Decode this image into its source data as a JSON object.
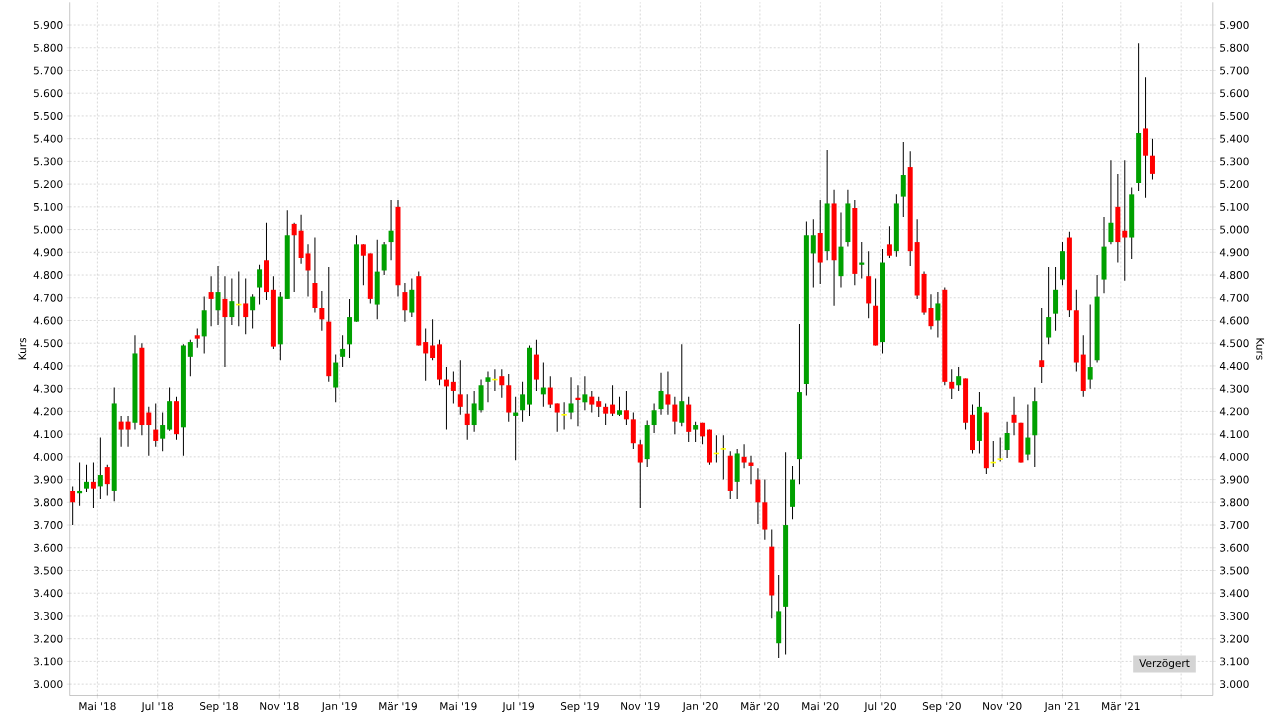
{
  "chart_data": {
    "type": "candlestick",
    "ylabel": "Kurs",
    "y2label": "Kurs",
    "annotations": [
      "Verzögert"
    ],
    "grid": true,
    "xlim": [
      "2018-04-03",
      "2021-06-02"
    ],
    "xticks": [
      {
        "value": "2018-05-01",
        "label": "Mai '18"
      },
      {
        "value": "2018-07-01",
        "label": "Jul '18"
      },
      {
        "value": "2018-09-01",
        "label": "Sep '18"
      },
      {
        "value": "2018-11-01",
        "label": "Nov '18"
      },
      {
        "value": "2019-01-01",
        "label": "Jan '19"
      },
      {
        "value": "2019-03-01",
        "label": "Mär '19"
      },
      {
        "value": "2019-05-01",
        "label": "Mai '19"
      },
      {
        "value": "2019-07-01",
        "label": "Jul '19"
      },
      {
        "value": "2019-09-01",
        "label": "Sep '19"
      },
      {
        "value": "2019-11-01",
        "label": "Nov '19"
      },
      {
        "value": "2020-01-01",
        "label": "Jan '20"
      },
      {
        "value": "2020-03-01",
        "label": "Mär '20"
      },
      {
        "value": "2020-05-01",
        "label": "Mai '20"
      },
      {
        "value": "2020-07-01",
        "label": "Jul '20"
      },
      {
        "value": "2020-09-01",
        "label": "Sep '20"
      },
      {
        "value": "2020-11-01",
        "label": "Nov '20"
      },
      {
        "value": "2021-01-01",
        "label": "Jan '21"
      },
      {
        "value": "2021-03-01",
        "label": "Mär '21"
      },
      {
        "value": "2021-05-01",
        "label": null
      }
    ],
    "ylim": [
      2950,
      6000
    ],
    "yticks": [
      {
        "value": 3000,
        "label": "3.000"
      },
      {
        "value": 3100,
        "label": "3.100"
      },
      {
        "value": 3200,
        "label": "3.200"
      },
      {
        "value": 3300,
        "label": "3.300"
      },
      {
        "value": 3400,
        "label": "3.400"
      },
      {
        "value": 3500,
        "label": "3.500"
      },
      {
        "value": 3600,
        "label": "3.600"
      },
      {
        "value": 3700,
        "label": "3.700"
      },
      {
        "value": 3800,
        "label": "3.800"
      },
      {
        "value": 3900,
        "label": "3.900"
      },
      {
        "value": 4000,
        "label": "4.000"
      },
      {
        "value": 4100,
        "label": "4.100"
      },
      {
        "value": 4200,
        "label": "4.200"
      },
      {
        "value": 4300,
        "label": "4.300"
      },
      {
        "value": 4400,
        "label": "4.400"
      },
      {
        "value": 4500,
        "label": "4.500"
      },
      {
        "value": 4600,
        "label": "4.600"
      },
      {
        "value": 4700,
        "label": "4.700"
      },
      {
        "value": 4800,
        "label": "4.800"
      },
      {
        "value": 4900,
        "label": "4.900"
      },
      {
        "value": 5000,
        "label": "5.000"
      },
      {
        "value": 5100,
        "label": "5.100"
      },
      {
        "value": 5200,
        "label": "5.200"
      },
      {
        "value": 5300,
        "label": "5.300"
      },
      {
        "value": 5400,
        "label": "5.400"
      },
      {
        "value": 5500,
        "label": "5.500"
      },
      {
        "value": 5600,
        "label": "5.600"
      },
      {
        "value": 5700,
        "label": "5.700"
      },
      {
        "value": 5800,
        "label": "5.800"
      },
      {
        "value": 5900,
        "label": "5.900"
      }
    ],
    "y2lim": [
      2950,
      6000
    ],
    "y2ticks": [
      {
        "value": 3000,
        "label": "3.000"
      },
      {
        "value": 3100,
        "label": "3.100"
      },
      {
        "value": 3200,
        "label": "3.200"
      },
      {
        "value": 3300,
        "label": "3.300"
      },
      {
        "value": 3400,
        "label": "3.400"
      },
      {
        "value": 3500,
        "label": "3.500"
      },
      {
        "value": 3600,
        "label": "3.600"
      },
      {
        "value": 3700,
        "label": "3.700"
      },
      {
        "value": 3800,
        "label": "3.800"
      },
      {
        "value": 3900,
        "label": "3.900"
      },
      {
        "value": 4000,
        "label": "4.000"
      },
      {
        "value": 4100,
        "label": "4.100"
      },
      {
        "value": 4200,
        "label": "4.200"
      },
      {
        "value": 4300,
        "label": "4.300"
      },
      {
        "value": 4400,
        "label": "4.400"
      },
      {
        "value": 4500,
        "label": "4.500"
      },
      {
        "value": 4600,
        "label": "4.600"
      },
      {
        "value": 4700,
        "label": "4.700"
      },
      {
        "value": 4800,
        "label": "4.800"
      },
      {
        "value": 4900,
        "label": "4.900"
      },
      {
        "value": 5000,
        "label": "5.000"
      },
      {
        "value": 5100,
        "label": "5.100"
      },
      {
        "value": 5200,
        "label": "5.200"
      },
      {
        "value": 5300,
        "label": "5.300"
      },
      {
        "value": 5400,
        "label": "5.400"
      },
      {
        "value": 5500,
        "label": "5.500"
      },
      {
        "value": 5600,
        "label": "5.600"
      },
      {
        "value": 5700,
        "label": "5.700"
      },
      {
        "value": 5800,
        "label": "5.800"
      },
      {
        "value": 5900,
        "label": "5.900"
      }
    ],
    "x": [
      "2018-04-06",
      "2018-04-13",
      "2018-04-20",
      "2018-04-27",
      "2018-05-04",
      "2018-05-11",
      "2018-05-18",
      "2018-05-25",
      "2018-06-01",
      "2018-06-08",
      "2018-06-15",
      "2018-06-22",
      "2018-06-29",
      "2018-07-06",
      "2018-07-13",
      "2018-07-20",
      "2018-07-27",
      "2018-08-03",
      "2018-08-10",
      "2018-08-17",
      "2018-08-24",
      "2018-08-31",
      "2018-09-07",
      "2018-09-14",
      "2018-09-21",
      "2018-09-28",
      "2018-10-05",
      "2018-10-12",
      "2018-10-19",
      "2018-10-26",
      "2018-11-02",
      "2018-11-09",
      "2018-11-16",
      "2018-11-23",
      "2018-11-30",
      "2018-12-07",
      "2018-12-14",
      "2018-12-21",
      "2018-12-28",
      "2019-01-04",
      "2019-01-11",
      "2019-01-18",
      "2019-01-25",
      "2019-02-01",
      "2019-02-08",
      "2019-02-15",
      "2019-02-22",
      "2019-03-01",
      "2019-03-08",
      "2019-03-15",
      "2019-03-22",
      "2019-03-29",
      "2019-04-05",
      "2019-04-12",
      "2019-04-19",
      "2019-04-26",
      "2019-05-03",
      "2019-05-10",
      "2019-05-17",
      "2019-05-24",
      "2019-05-31",
      "2019-06-07",
      "2019-06-14",
      "2019-06-21",
      "2019-06-28",
      "2019-07-05",
      "2019-07-12",
      "2019-07-19",
      "2019-07-26",
      "2019-08-02",
      "2019-08-09",
      "2019-08-16",
      "2019-08-23",
      "2019-08-30",
      "2019-09-06",
      "2019-09-13",
      "2019-09-20",
      "2019-09-27",
      "2019-10-04",
      "2019-10-11",
      "2019-10-18",
      "2019-10-25",
      "2019-11-01",
      "2019-11-08",
      "2019-11-15",
      "2019-11-22",
      "2019-11-29",
      "2019-12-06",
      "2019-12-13",
      "2019-12-20",
      "2019-12-27",
      "2020-01-03",
      "2020-01-10",
      "2020-01-17",
      "2020-01-24",
      "2020-01-31",
      "2020-02-07",
      "2020-02-14",
      "2020-02-21",
      "2020-02-28",
      "2020-03-06",
      "2020-03-13",
      "2020-03-20",
      "2020-03-27",
      "2020-04-03",
      "2020-04-10",
      "2020-04-17",
      "2020-04-24",
      "2020-05-01",
      "2020-05-08",
      "2020-05-15",
      "2020-05-22",
      "2020-05-29",
      "2020-06-05",
      "2020-06-12",
      "2020-06-19",
      "2020-06-26",
      "2020-07-03",
      "2020-07-10",
      "2020-07-17",
      "2020-07-24",
      "2020-07-31",
      "2020-08-07",
      "2020-08-14",
      "2020-08-21",
      "2020-08-28",
      "2020-09-04",
      "2020-09-11",
      "2020-09-18",
      "2020-09-25",
      "2020-10-02",
      "2020-10-09",
      "2020-10-16",
      "2020-10-23",
      "2020-10-30",
      "2020-11-06",
      "2020-11-13",
      "2020-11-20",
      "2020-11-27",
      "2020-12-04",
      "2020-12-11",
      "2020-12-18",
      "2020-12-25",
      "2021-01-01",
      "2021-01-08",
      "2021-01-15",
      "2021-01-22",
      "2021-01-29",
      "2021-02-05",
      "2021-02-12",
      "2021-02-19",
      "2021-02-26",
      "2021-03-05",
      "2021-03-12",
      "2021-03-19",
      "2021-03-26",
      "2021-04-02"
    ],
    "ohlc": [
      [
        3850,
        3870,
        3700,
        3800
      ],
      [
        3840,
        3975,
        3785,
        3850
      ],
      [
        3860,
        3965,
        3845,
        3890
      ],
      [
        3890,
        3975,
        3775,
        3860
      ],
      [
        3870,
        4085,
        3815,
        3920
      ],
      [
        3955,
        3965,
        3830,
        3880
      ],
      [
        3850,
        4305,
        3805,
        4235
      ],
      [
        4155,
        4180,
        4045,
        4120
      ],
      [
        4155,
        4180,
        4045,
        4120
      ],
      [
        4150,
        4535,
        4120,
        4455
      ],
      [
        4480,
        4500,
        4095,
        4140
      ],
      [
        4195,
        4220,
        4005,
        4140
      ],
      [
        4120,
        4235,
        4045,
        4070
      ],
      [
        4080,
        4195,
        4025,
        4140
      ],
      [
        4120,
        4305,
        4115,
        4245
      ],
      [
        4245,
        4265,
        4075,
        4100
      ],
      [
        4130,
        4495,
        4005,
        4490
      ],
      [
        4440,
        4515,
        4355,
        4505
      ],
      [
        4535,
        4565,
        4480,
        4520
      ],
      [
        4530,
        4705,
        4455,
        4645
      ],
      [
        4725,
        4795,
        4575,
        4695
      ],
      [
        4645,
        4840,
        4580,
        4725
      ],
      [
        4695,
        4795,
        4395,
        4615
      ],
      [
        4615,
        4785,
        4580,
        4685
      ],
      [
        4670,
        4815,
        4575,
        4670
      ],
      [
        4675,
        4785,
        4540,
        4615
      ],
      [
        4645,
        4715,
        4565,
        4705
      ],
      [
        4745,
        4845,
        4670,
        4825
      ],
      [
        4865,
        5030,
        4690,
        4725
      ],
      [
        4735,
        4795,
        4475,
        4485
      ],
      [
        4495,
        4725,
        4425,
        4705
      ],
      [
        4695,
        5085,
        4695,
        4975
      ],
      [
        5025,
        5030,
        4725,
        4975
      ],
      [
        4995,
        5065,
        4850,
        4875
      ],
      [
        4895,
        4935,
        4705,
        4820
      ],
      [
        4765,
        4965,
        4635,
        4655
      ],
      [
        4655,
        4730,
        4555,
        4605
      ],
      [
        4595,
        4835,
        4330,
        4355
      ],
      [
        4305,
        4450,
        4240,
        4415
      ],
      [
        4440,
        4535,
        4395,
        4475
      ],
      [
        4495,
        4695,
        4435,
        4615
      ],
      [
        4595,
        4975,
        4595,
        4935
      ],
      [
        4935,
        4935,
        4755,
        4885
      ],
      [
        4895,
        4895,
        4675,
        4695
      ],
      [
        4670,
        4955,
        4605,
        4815
      ],
      [
        4820,
        4945,
        4800,
        4935
      ],
      [
        4945,
        5130,
        4865,
        4995
      ],
      [
        5100,
        5130,
        4705,
        4755
      ],
      [
        4725,
        4765,
        4595,
        4645
      ],
      [
        4635,
        4785,
        4615,
        4735
      ],
      [
        4795,
        4815,
        4490,
        4490
      ],
      [
        4505,
        4565,
        4335,
        4455
      ],
      [
        4490,
        4605,
        4425,
        4435
      ],
      [
        4495,
        4515,
        4315,
        4340
      ],
      [
        4340,
        4395,
        4120,
        4310
      ],
      [
        4330,
        4375,
        4235,
        4290
      ],
      [
        4275,
        4425,
        4185,
        4220
      ],
      [
        4190,
        4275,
        4075,
        4140
      ],
      [
        4140,
        4290,
        4110,
        4235
      ],
      [
        4205,
        4340,
        4195,
        4315
      ],
      [
        4330,
        4375,
        4240,
        4350
      ],
      [
        4340,
        4385,
        4290,
        4340
      ],
      [
        4355,
        4385,
        4260,
        4315
      ],
      [
        4315,
        4365,
        4155,
        4195
      ],
      [
        4180,
        4265,
        3985,
        4195
      ],
      [
        4205,
        4330,
        4155,
        4275
      ],
      [
        4230,
        4490,
        4180,
        4480
      ],
      [
        4450,
        4515,
        4290,
        4340
      ],
      [
        4275,
        4415,
        4220,
        4305
      ],
      [
        4305,
        4355,
        4215,
        4230
      ],
      [
        4235,
        4235,
        4110,
        4195
      ],
      [
        4185,
        4240,
        4120,
        4185
      ],
      [
        4195,
        4350,
        4165,
        4235
      ],
      [
        4260,
        4315,
        4135,
        4250
      ],
      [
        4240,
        4355,
        4205,
        4275
      ],
      [
        4265,
        4290,
        4195,
        4230
      ],
      [
        4245,
        4265,
        4175,
        4220
      ],
      [
        4220,
        4235,
        4140,
        4190
      ],
      [
        4230,
        4315,
        4180,
        4190
      ],
      [
        4185,
        4265,
        4180,
        4205
      ],
      [
        4205,
        4290,
        4140,
        4165
      ],
      [
        4165,
        4195,
        4035,
        4060
      ],
      [
        4055,
        4075,
        3775,
        3975
      ],
      [
        3990,
        4160,
        3955,
        4140
      ],
      [
        4140,
        4235,
        4105,
        4205
      ],
      [
        4210,
        4370,
        4185,
        4290
      ],
      [
        4275,
        4375,
        4185,
        4230
      ],
      [
        4230,
        4265,
        4100,
        4155
      ],
      [
        4150,
        4495,
        4135,
        4245
      ],
      [
        4230,
        4265,
        4065,
        4110
      ],
      [
        4120,
        4155,
        4065,
        4140
      ],
      [
        4150,
        4150,
        4055,
        4090
      ],
      [
        4120,
        4120,
        3965,
        3975
      ],
      [
        4015,
        4095,
        3975,
        4015
      ],
      [
        4035,
        4095,
        3900,
        4035
      ],
      [
        4005,
        4025,
        3815,
        3850
      ],
      [
        3890,
        4035,
        3815,
        4015
      ],
      [
        4000,
        4055,
        3950,
        3975
      ],
      [
        3975,
        4005,
        3880,
        3960
      ],
      [
        3900,
        3950,
        3705,
        3800
      ],
      [
        3800,
        3900,
        3635,
        3680
      ],
      [
        3605,
        3680,
        3290,
        3390
      ],
      [
        3180,
        3480,
        3115,
        3320
      ],
      [
        3340,
        4020,
        3130,
        3700
      ],
      [
        3780,
        3960,
        3725,
        3900
      ],
      [
        3990,
        4585,
        3880,
        4285
      ],
      [
        4320,
        5035,
        4270,
        4975
      ],
      [
        4895,
        5045,
        4745,
        4975
      ],
      [
        4985,
        5130,
        4760,
        4855
      ],
      [
        4905,
        5350,
        4865,
        5115
      ],
      [
        5115,
        5175,
        4665,
        4865
      ],
      [
        4795,
        5075,
        4745,
        4925
      ],
      [
        4945,
        5175,
        4925,
        5115
      ],
      [
        5095,
        5130,
        4755,
        4805
      ],
      [
        4845,
        4945,
        4785,
        4855
      ],
      [
        4795,
        4905,
        4610,
        4675
      ],
      [
        4665,
        4785,
        4490,
        4490
      ],
      [
        4505,
        4915,
        4455,
        4855
      ],
      [
        4935,
        5015,
        4875,
        4885
      ],
      [
        4905,
        5155,
        4880,
        5115
      ],
      [
        5145,
        5385,
        5055,
        5240
      ],
      [
        5275,
        5345,
        4840,
        4905
      ],
      [
        4945,
        5045,
        4695,
        4710
      ],
      [
        4805,
        4815,
        4625,
        4635
      ],
      [
        4655,
        4715,
        4560,
        4575
      ],
      [
        4600,
        4725,
        4525,
        4675
      ],
      [
        4735,
        4745,
        4315,
        4330
      ],
      [
        4330,
        4385,
        4255,
        4300
      ],
      [
        4315,
        4395,
        4290,
        4355
      ],
      [
        4345,
        4345,
        4120,
        4150
      ],
      [
        4185,
        4230,
        4015,
        4030
      ],
      [
        4070,
        4285,
        4015,
        4220
      ],
      [
        4195,
        4195,
        3925,
        3950
      ],
      [
        3975,
        4070,
        3955,
        3975
      ],
      [
        3990,
        4085,
        3980,
        3990
      ],
      [
        4030,
        4155,
        3995,
        4105
      ],
      [
        4185,
        4265,
        4095,
        4150
      ],
      [
        4150,
        4150,
        3975,
        3975
      ],
      [
        4010,
        4230,
        3985,
        4085
      ],
      [
        4095,
        4305,
        3955,
        4245
      ],
      [
        4425,
        4655,
        4325,
        4395
      ],
      [
        4525,
        4835,
        4495,
        4615
      ],
      [
        4630,
        4835,
        4555,
        4735
      ],
      [
        4780,
        4945,
        4755,
        4905
      ],
      [
        4965,
        4990,
        4615,
        4645
      ],
      [
        4645,
        4735,
        4375,
        4415
      ],
      [
        4450,
        4535,
        4265,
        4290
      ],
      [
        4340,
        4670,
        4300,
        4395
      ],
      [
        4425,
        4800,
        4415,
        4705
      ],
      [
        4780,
        5055,
        4720,
        4925
      ],
      [
        4945,
        5305,
        4935,
        5030
      ],
      [
        5100,
        5245,
        4855,
        4945
      ],
      [
        4995,
        5305,
        4775,
        4965
      ],
      [
        4965,
        5185,
        4870,
        5155
      ],
      [
        5205,
        5820,
        5170,
        5425
      ],
      [
        5445,
        5670,
        5140,
        5325
      ],
      [
        5325,
        5400,
        5220,
        5245
      ]
    ],
    "colors": [
      "#ff0000",
      "#00a000",
      "#00a000",
      "#ff0000",
      "#00a000",
      "#ff0000",
      "#00a000",
      "#ff0000",
      "#ff0000",
      "#00a000",
      "#ff0000",
      "#ff0000",
      "#ff0000",
      "#00a000",
      "#00a000",
      "#ff0000",
      "#00a000",
      "#00a000",
      "#ff0000",
      "#00a000",
      "#ff0000",
      "#00a000",
      "#ff0000",
      "#00a000",
      "#ffff00",
      "#ff0000",
      "#00a000",
      "#00a000",
      "#ff0000",
      "#ff0000",
      "#00a000",
      "#00a000",
      "#ff0000",
      "#ff0000",
      "#ff0000",
      "#ff0000",
      "#ff0000",
      "#ff0000",
      "#00a000",
      "#00a000",
      "#00a000",
      "#00a000",
      "#ff0000",
      "#ff0000",
      "#00a000",
      "#00a000",
      "#00a000",
      "#ff0000",
      "#ff0000",
      "#00a000",
      "#ff0000",
      "#ff0000",
      "#ff0000",
      "#ff0000",
      "#ff0000",
      "#ff0000",
      "#ff0000",
      "#ff0000",
      "#00a000",
      "#00a000",
      "#00a000",
      "#ffff00",
      "#ff0000",
      "#ff0000",
      "#00a000",
      "#00a000",
      "#00a000",
      "#ff0000",
      "#00a000",
      "#ff0000",
      "#ff0000",
      "#ffff00",
      "#00a000",
      "#ff0000",
      "#00a000",
      "#ff0000",
      "#ff0000",
      "#ff0000",
      "#ff0000",
      "#00a000",
      "#ff0000",
      "#ff0000",
      "#ff0000",
      "#00a000",
      "#00a000",
      "#00a000",
      "#ff0000",
      "#ff0000",
      "#00a000",
      "#ff0000",
      "#00a000",
      "#ff0000",
      "#ff0000",
      "#ffff00",
      "#ffff00",
      "#ff0000",
      "#00a000",
      "#ff0000",
      "#ff0000",
      "#ff0000",
      "#ff0000",
      "#ff0000",
      "#00a000",
      "#00a000",
      "#00a000",
      "#00a000",
      "#00a000",
      "#00a000",
      "#ff0000",
      "#00a000",
      "#ff0000",
      "#00a000",
      "#00a000",
      "#ff0000",
      "#00a000",
      "#ff0000",
      "#ff0000",
      "#00a000",
      "#ff0000",
      "#00a000",
      "#00a000",
      "#ff0000",
      "#ff0000",
      "#ff0000",
      "#ff0000",
      "#00a000",
      "#ff0000",
      "#ff0000",
      "#00a000",
      "#ff0000",
      "#ff0000",
      "#00a000",
      "#ff0000",
      "#ffff00",
      "#ffff00",
      "#00a000",
      "#ff0000",
      "#ff0000",
      "#00a000",
      "#00a000",
      "#ff0000",
      "#00a000",
      "#00a000",
      "#00a000",
      "#ff0000",
      "#ff0000",
      "#ff0000",
      "#00a000",
      "#00a000",
      "#00a000",
      "#00a000",
      "#ff0000",
      "#ff0000",
      "#00a000",
      "#00a000",
      "#ff0000",
      "#ff0000"
    ]
  }
}
